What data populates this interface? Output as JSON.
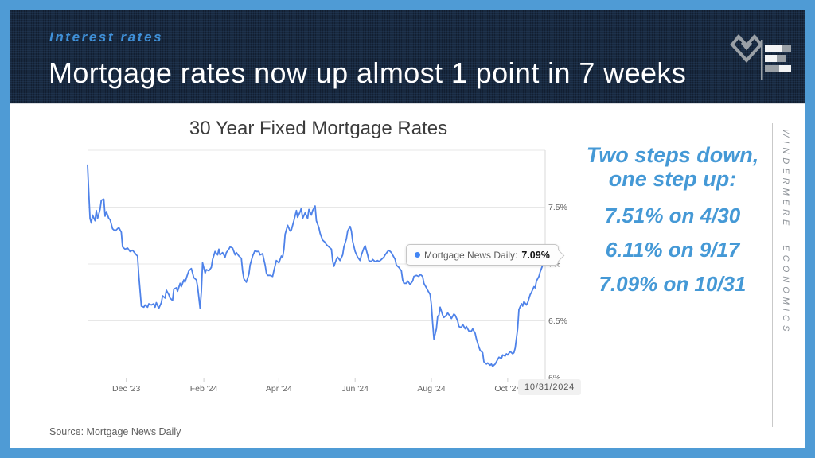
{
  "slide": {
    "eyebrow": "Interest rates",
    "title": "Mortgage rates now up almost 1 point in 7 weeks",
    "source": "Source: Mortgage News Daily",
    "rail_text": "WINDERMERE ECONOMICS"
  },
  "icons": {
    "logo_mark": "windermere-diamond-icon",
    "logo_chart": "bar-chart-icon",
    "tooltip_dot": "series-dot-icon"
  },
  "colors": {
    "frame_blue": "#4f9bd5",
    "header_navy": "#18293f",
    "eyebrow_blue": "#3f90d8",
    "callout_blue": "#4599d6",
    "line_blue": "#4e82e9",
    "highlight_blue": "#4285f4",
    "grid_gray": "#e7e7e7",
    "axis_gray": "#cfcfcf",
    "tick_text_gray": "#666666",
    "logo_gray": "#9aa0a6"
  },
  "callout": {
    "heading_line1": "Two steps down,",
    "heading_line2": "one step up:",
    "stats": [
      "7.51% on 4/30",
      "6.11% on 9/17",
      "7.09% on 10/31"
    ]
  },
  "tooltip": {
    "label": "Mortgage News Daily:",
    "value": "7.09%"
  },
  "date_flag": "10/31/2024",
  "chart_data": {
    "type": "line",
    "title": "30 Year Fixed Mortgage Rates",
    "grid": true,
    "legend_position": "none",
    "x_axis": {
      "unit": "days from first point (late Oct 2023 to 10/31/2024)",
      "range_days": [
        0,
        366
      ],
      "ticks": [
        {
          "label": "Dec '23",
          "day": 31
        },
        {
          "label": "Feb '24",
          "day": 93
        },
        {
          "label": "Apr '24",
          "day": 153
        },
        {
          "label": "Jun '24",
          "day": 214
        },
        {
          "label": "Aug '24",
          "day": 275
        },
        {
          "label": "Oct '24",
          "day": 336
        }
      ]
    },
    "y_axis": {
      "unit": "percent",
      "range": [
        6,
        8
      ],
      "gridlines": [
        8,
        7.5,
        7,
        6.5
      ],
      "ticks": [
        {
          "label": "7.5%",
          "value": 7.5
        },
        {
          "label": "7%",
          "value": 7
        },
        {
          "label": "6.5%",
          "value": 6.5
        },
        {
          "label": "6%",
          "value": 6
        }
      ]
    },
    "highlight_point": {
      "day": 366,
      "value": 7.09,
      "label": "10/31/2024"
    },
    "series": [
      {
        "name": "Mortgage News Daily",
        "color": "#4e82e9",
        "points": [
          [
            0,
            7.87
          ],
          [
            1,
            7.62
          ],
          [
            2,
            7.4
          ],
          [
            3,
            7.36
          ],
          [
            4,
            7.43
          ],
          [
            6,
            7.38
          ],
          [
            7,
            7.47
          ],
          [
            8,
            7.4
          ],
          [
            10,
            7.48
          ],
          [
            11,
            7.56
          ],
          [
            13,
            7.57
          ],
          [
            14,
            7.42
          ],
          [
            15,
            7.46
          ],
          [
            17,
            7.4
          ],
          [
            18,
            7.39
          ],
          [
            20,
            7.31
          ],
          [
            22,
            7.29
          ],
          [
            25,
            7.32
          ],
          [
            27,
            7.28
          ],
          [
            28,
            7.15
          ],
          [
            30,
            7.13
          ],
          [
            32,
            7.14
          ],
          [
            34,
            7.11
          ],
          [
            36,
            7.12
          ],
          [
            39,
            7.08
          ],
          [
            40,
            7.07
          ],
          [
            41,
            6.9
          ],
          [
            43,
            6.63
          ],
          [
            45,
            6.62
          ],
          [
            46,
            6.64
          ],
          [
            48,
            6.62
          ],
          [
            49,
            6.65
          ],
          [
            51,
            6.64
          ],
          [
            53,
            6.65
          ],
          [
            54,
            6.62
          ],
          [
            55,
            6.66
          ],
          [
            57,
            6.61
          ],
          [
            59,
            6.66
          ],
          [
            60,
            6.72
          ],
          [
            62,
            6.7
          ],
          [
            63,
            6.77
          ],
          [
            65,
            6.73
          ],
          [
            66,
            6.7
          ],
          [
            68,
            6.68
          ],
          [
            69,
            6.78
          ],
          [
            71,
            6.79
          ],
          [
            72,
            6.76
          ],
          [
            74,
            6.83
          ],
          [
            75,
            6.8
          ],
          [
            77,
            6.86
          ],
          [
            78,
            6.84
          ],
          [
            80,
            6.91
          ],
          [
            81,
            6.94
          ],
          [
            83,
            6.96
          ],
          [
            85,
            6.88
          ],
          [
            87,
            6.86
          ],
          [
            88,
            6.8
          ],
          [
            90,
            6.61
          ],
          [
            91,
            6.76
          ],
          [
            92,
            7.01
          ],
          [
            94,
            6.92
          ],
          [
            95,
            6.95
          ],
          [
            97,
            6.94
          ],
          [
            99,
            6.97
          ],
          [
            100,
            7.04
          ],
          [
            102,
            7.11
          ],
          [
            104,
            7.08
          ],
          [
            105,
            7.13
          ],
          [
            106,
            7.08
          ],
          [
            108,
            7.1
          ],
          [
            110,
            7.06
          ],
          [
            111,
            7.1
          ],
          [
            113,
            7.13
          ],
          [
            114,
            7.15
          ],
          [
            116,
            7.14
          ],
          [
            118,
            7.08
          ],
          [
            119,
            7.1
          ],
          [
            121,
            7.07
          ],
          [
            123,
            7.05
          ],
          [
            124,
            6.94
          ],
          [
            125,
            6.87
          ],
          [
            127,
            6.84
          ],
          [
            129,
            6.91
          ],
          [
            130,
            6.99
          ],
          [
            132,
            7.07
          ],
          [
            134,
            7.12
          ],
          [
            135,
            7.11
          ],
          [
            137,
            7.11
          ],
          [
            138,
            7.08
          ],
          [
            140,
            7.09
          ],
          [
            142,
            6.99
          ],
          [
            143,
            6.92
          ],
          [
            144,
            6.9
          ],
          [
            146,
            6.9
          ],
          [
            148,
            6.89
          ],
          [
            149,
            6.94
          ],
          [
            151,
            7.03
          ],
          [
            153,
            7.01
          ],
          [
            155,
            7.07
          ],
          [
            156,
            7.06
          ],
          [
            157,
            7.13
          ],
          [
            158,
            7.26
          ],
          [
            160,
            7.34
          ],
          [
            162,
            7.29
          ],
          [
            163,
            7.3
          ],
          [
            165,
            7.38
          ],
          [
            167,
            7.47
          ],
          [
            168,
            7.41
          ],
          [
            170,
            7.46
          ],
          [
            171,
            7.49
          ],
          [
            172,
            7.4
          ],
          [
            174,
            7.45
          ],
          [
            176,
            7.4
          ],
          [
            177,
            7.48
          ],
          [
            179,
            7.43
          ],
          [
            180,
            7.47
          ],
          [
            182,
            7.51
          ],
          [
            183,
            7.38
          ],
          [
            185,
            7.32
          ],
          [
            186,
            7.27
          ],
          [
            188,
            7.21
          ],
          [
            190,
            7.19
          ],
          [
            191,
            7.17
          ],
          [
            193,
            7.15
          ],
          [
            195,
            7.13
          ],
          [
            196,
            7.03
          ],
          [
            197,
            6.98
          ],
          [
            199,
            7.04
          ],
          [
            200,
            7.06
          ],
          [
            202,
            7.03
          ],
          [
            204,
            7.08
          ],
          [
            205,
            7.15
          ],
          [
            207,
            7.22
          ],
          [
            208,
            7.29
          ],
          [
            210,
            7.33
          ],
          [
            211,
            7.29
          ],
          [
            212,
            7.2
          ],
          [
            214,
            7.11
          ],
          [
            216,
            7.06
          ],
          [
            218,
            7.03
          ],
          [
            219,
            7.08
          ],
          [
            221,
            7.14
          ],
          [
            222,
            7.16
          ],
          [
            224,
            7.08
          ],
          [
            225,
            7.03
          ],
          [
            227,
            7.02
          ],
          [
            228,
            7.04
          ],
          [
            230,
            7.02
          ],
          [
            232,
            7.03
          ],
          [
            233,
            7.02
          ],
          [
            235,
            7.04
          ],
          [
            237,
            7.06
          ],
          [
            238,
            7.08
          ],
          [
            240,
            7.11
          ],
          [
            241,
            7.12
          ],
          [
            243,
            7.1
          ],
          [
            244,
            7.08
          ],
          [
            246,
            7.04
          ],
          [
            247,
            6.99
          ],
          [
            249,
            6.97
          ],
          [
            251,
            6.94
          ],
          [
            252,
            6.86
          ],
          [
            253,
            6.83
          ],
          [
            255,
            6.83
          ],
          [
            256,
            6.85
          ],
          [
            258,
            6.82
          ],
          [
            260,
            6.85
          ],
          [
            261,
            6.89
          ],
          [
            263,
            6.9
          ],
          [
            265,
            6.89
          ],
          [
            266,
            6.91
          ],
          [
            268,
            6.89
          ],
          [
            269,
            6.83
          ],
          [
            271,
            6.79
          ],
          [
            272,
            6.77
          ],
          [
            274,
            6.73
          ],
          [
            275,
            6.64
          ],
          [
            276,
            6.48
          ],
          [
            277,
            6.34
          ],
          [
            279,
            6.43
          ],
          [
            280,
            6.54
          ],
          [
            281,
            6.55
          ],
          [
            282,
            6.62
          ],
          [
            284,
            6.55
          ],
          [
            285,
            6.53
          ],
          [
            287,
            6.55
          ],
          [
            288,
            6.57
          ],
          [
            290,
            6.54
          ],
          [
            291,
            6.52
          ],
          [
            293,
            6.56
          ],
          [
            294,
            6.55
          ],
          [
            296,
            6.5
          ],
          [
            297,
            6.45
          ],
          [
            299,
            6.44
          ],
          [
            300,
            6.47
          ],
          [
            302,
            6.43
          ],
          [
            303,
            6.45
          ],
          [
            305,
            6.41
          ],
          [
            307,
            6.41
          ],
          [
            308,
            6.43
          ],
          [
            310,
            6.39
          ],
          [
            311,
            6.34
          ],
          [
            313,
            6.27
          ],
          [
            314,
            6.24
          ],
          [
            316,
            6.22
          ],
          [
            317,
            6.14
          ],
          [
            319,
            6.12
          ],
          [
            320,
            6.13
          ],
          [
            322,
            6.11
          ],
          [
            323,
            6.12
          ],
          [
            324,
            6.1
          ],
          [
            326,
            6.12
          ],
          [
            328,
            6.16
          ],
          [
            329,
            6.18
          ],
          [
            331,
            6.17
          ],
          [
            332,
            6.2
          ],
          [
            334,
            6.19
          ],
          [
            335,
            6.21
          ],
          [
            336,
            6.2
          ],
          [
            338,
            6.23
          ],
          [
            340,
            6.21
          ],
          [
            341,
            6.22
          ],
          [
            342,
            6.26
          ],
          [
            344,
            6.43
          ],
          [
            345,
            6.6
          ],
          [
            347,
            6.65
          ],
          [
            348,
            6.63
          ],
          [
            349,
            6.67
          ],
          [
            351,
            6.64
          ],
          [
            352,
            6.66
          ],
          [
            354,
            6.73
          ],
          [
            355,
            6.75
          ],
          [
            357,
            6.8
          ],
          [
            358,
            6.79
          ],
          [
            359,
            6.85
          ],
          [
            361,
            6.89
          ],
          [
            362,
            6.93
          ],
          [
            364,
            6.99
          ],
          [
            365,
            7.04
          ],
          [
            366,
            7.09
          ]
        ]
      }
    ]
  }
}
